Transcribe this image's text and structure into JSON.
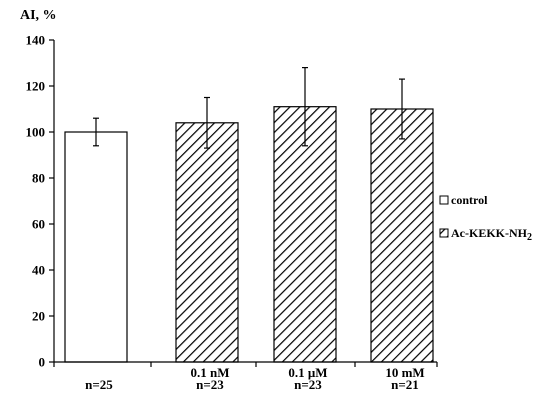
{
  "chart_data": {
    "type": "bar",
    "ylabel": "AI, %",
    "ylim": [
      0,
      140
    ],
    "yticks": [
      0,
      20,
      40,
      60,
      80,
      100,
      120,
      140
    ],
    "grid": false,
    "legend_position": "right",
    "categories": [
      {
        "dose": "",
        "n": "n=25"
      },
      {
        "dose": "0.1 nM",
        "n": "n=23"
      },
      {
        "dose": "0.1 μM",
        "n": "n=23"
      },
      {
        "dose": "10 mM",
        "n": "n=21"
      }
    ],
    "bars": [
      {
        "series": "control",
        "value": 100,
        "error": 6
      },
      {
        "series": "Ac-KEKK-NH2",
        "value": 104,
        "error": 11
      },
      {
        "series": "Ac-KEKK-NH2",
        "value": 111,
        "error": 17
      },
      {
        "series": "Ac-KEKK-NH2",
        "value": 110,
        "error": 13
      }
    ],
    "legend": [
      {
        "label": "control",
        "fill": "solid-white"
      },
      {
        "label": "Ac-KEKK-NH",
        "subscript": "2",
        "fill": "diagonal-hatch"
      }
    ]
  }
}
